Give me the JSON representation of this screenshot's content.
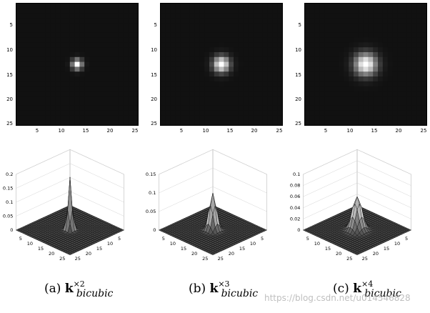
{
  "figure": {
    "panels": [
      {
        "id": "a",
        "caption_prefix": "(a)",
        "kernel_symbol": "k",
        "superscript": "×2",
        "subscript": "bicubic",
        "heatmap": {
          "ytick_labels": [
            "5",
            "10",
            "15",
            "20",
            "25"
          ],
          "xtick_labels": [
            "5",
            "10",
            "15",
            "20",
            "25"
          ],
          "spread": 1.2
        },
        "surface": {
          "ztick_labels": [
            "0.2",
            "0.15",
            "0.1",
            "0.05",
            "0"
          ],
          "zlim": [
            0,
            0.2
          ],
          "peak": 0.19,
          "left_axis_ticks": [
            "5",
            "10",
            "15",
            "20",
            "25"
          ],
          "right_axis_ticks": [
            "5",
            "10",
            "15",
            "20",
            "25"
          ]
        }
      },
      {
        "id": "b",
        "caption_prefix": "(b)",
        "kernel_symbol": "k",
        "superscript": "×3",
        "subscript": "bicubic",
        "heatmap": {
          "ytick_labels": [
            "5",
            "10",
            "15",
            "20",
            "25"
          ],
          "xtick_labels": [
            "5",
            "10",
            "15",
            "20",
            "25"
          ],
          "spread": 1.9
        },
        "surface": {
          "ztick_labels": [
            "0.15",
            "0.1",
            "0.05",
            "0"
          ],
          "zlim": [
            0,
            0.15
          ],
          "peak": 0.1,
          "left_axis_ticks": [
            "5",
            "10",
            "15",
            "20",
            "25"
          ],
          "right_axis_ticks": [
            "5",
            "10",
            "15",
            "20",
            "25"
          ]
        }
      },
      {
        "id": "c",
        "caption_prefix": "(c)",
        "kernel_symbol": "k",
        "superscript": "×4",
        "subscript": "bicubic",
        "heatmap": {
          "ytick_labels": [
            "5",
            "10",
            "15",
            "20",
            "25"
          ],
          "xtick_labels": [
            "5",
            "10",
            "15",
            "20",
            "25"
          ],
          "spread": 2.6
        },
        "surface": {
          "ztick_labels": [
            "0.1",
            "0.08",
            "0.06",
            "0.04",
            "0.02",
            "0"
          ],
          "zlim": [
            0,
            0.1
          ],
          "peak": 0.06,
          "left_axis_ticks": [
            "5",
            "10",
            "15",
            "20",
            "25"
          ],
          "right_axis_ticks": [
            "5",
            "10",
            "15",
            "20",
            "25"
          ]
        }
      }
    ]
  },
  "watermark": "https://blog.csdn.net/u014546828"
}
